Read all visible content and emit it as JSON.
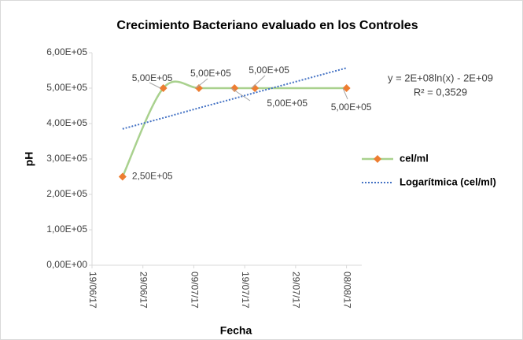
{
  "chart_data": {
    "type": "line",
    "title": "Crecimiento Bacteriano evaluado en los Controles",
    "x_label": "Fecha",
    "y_label": "pH",
    "x": [
      "25/06/17",
      "03/07/17",
      "10/07/17",
      "17/07/17",
      "21/07/17",
      "08/08/17"
    ],
    "series": [
      {
        "name": "cel/ml",
        "color": "#a9d18e",
        "marker_color": "#ed7d31",
        "values": [
          250000,
          500000,
          500000,
          500000,
          500000,
          500000
        ],
        "value_labels": [
          "2,50E+05",
          "5,00E+05",
          "5,00E+05",
          "5,00E+05",
          "5,00E+05",
          "5,00E+05"
        ]
      },
      {
        "name": "Logarítmica (cel/ml)",
        "color": "#4472c4",
        "dashed": true,
        "values": [
          385000,
          416000,
          444000,
          471000,
          487000,
          557000
        ]
      }
    ],
    "trendline_equation": "y = 2E+08ln(x) - 2E+09",
    "r_squared": "R² = 0,3529",
    "xlim": [
      "19/06/17",
      "11/08/17"
    ],
    "xticks": [
      "19/06/17",
      "29/06/17",
      "09/07/17",
      "19/07/17",
      "29/07/17",
      "08/08/17"
    ],
    "ylim": [
      0,
      600000
    ],
    "yticks": [
      {
        "value": 0,
        "label": "0,00E+00"
      },
      {
        "value": 100000,
        "label": "1,00E+05"
      },
      {
        "value": 200000,
        "label": "2,00E+05"
      },
      {
        "value": 300000,
        "label": "3,00E+05"
      },
      {
        "value": 400000,
        "label": "4,00E+05"
      },
      {
        "value": 500000,
        "label": "5,00E+05"
      },
      {
        "value": 600000,
        "label": "6,00E+05"
      }
    ],
    "grid": false,
    "legend": "right"
  }
}
